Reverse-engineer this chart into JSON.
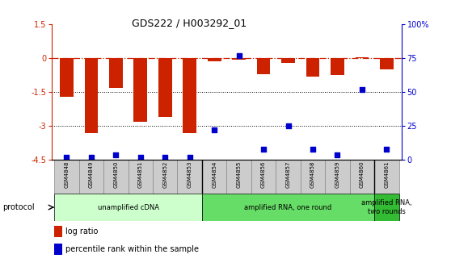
{
  "title": "GDS222 / H003292_01",
  "samples": [
    "GSM4848",
    "GSM4849",
    "GSM4850",
    "GSM4851",
    "GSM4852",
    "GSM4853",
    "GSM4854",
    "GSM4855",
    "GSM4856",
    "GSM4857",
    "GSM4858",
    "GSM4859",
    "GSM4860",
    "GSM4861"
  ],
  "log_ratio": [
    -1.7,
    -3.3,
    -1.3,
    -2.8,
    -2.6,
    -3.3,
    -0.15,
    -0.05,
    -0.7,
    -0.2,
    -0.8,
    -0.75,
    0.05,
    -0.5
  ],
  "percentile_rank": [
    2,
    2,
    4,
    2,
    2,
    2,
    22,
    77,
    8,
    25,
    8,
    4,
    52,
    8
  ],
  "bar_color": "#cc2200",
  "dot_color": "#0000cc",
  "ylim_left": [
    -4.5,
    1.5
  ],
  "ylim_right": [
    0,
    100
  ],
  "yticks_left": [
    -4.5,
    -3.0,
    -1.5,
    0.0,
    1.5
  ],
  "yticks_left_labels": [
    "-4.5",
    "-3",
    "-1.5",
    "0",
    "1.5"
  ],
  "yticks_right": [
    0,
    25,
    50,
    75,
    100
  ],
  "yticks_right_labels": [
    "0",
    "25",
    "50",
    "75",
    "100%"
  ],
  "hline_y": 0,
  "dotted_lines": [
    -1.5,
    -3.0
  ],
  "protocol_groups": [
    {
      "label": "unamplified cDNA",
      "start": 0,
      "end": 5,
      "color": "#ccffcc"
    },
    {
      "label": "amplified RNA, one round",
      "start": 6,
      "end": 12,
      "color": "#66dd66"
    },
    {
      "label": "amplified RNA,\ntwo rounds",
      "start": 13,
      "end": 13,
      "color": "#33bb33"
    }
  ],
  "legend_log_ratio": "log ratio",
  "legend_percentile": "percentile rank within the sample",
  "protocol_label": "protocol",
  "bar_width": 0.55,
  "sample_box_color": "#cccccc",
  "sample_box_edge": "#888888"
}
